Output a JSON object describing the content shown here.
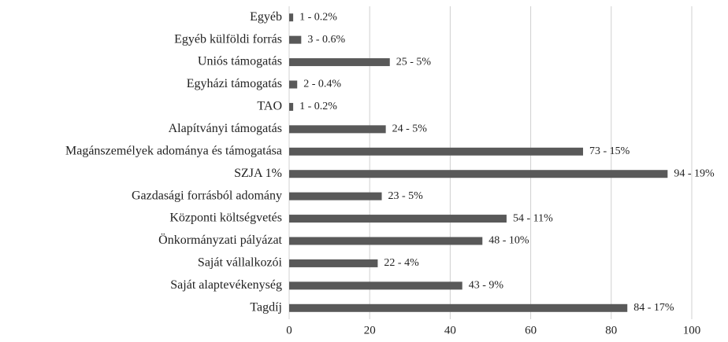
{
  "chart_data": {
    "type": "bar",
    "orientation": "horizontal",
    "categories": [
      "Egyéb",
      "Egyéb külföldi forrás",
      "Uniós támogatás",
      "Egyházi támogatás",
      "TAO",
      "Alapítványi támogatás",
      "Magánszemélyek adománya és támogatása",
      "SZJA 1%",
      "Gazdasági forrásból adomány",
      "Központi költségvetés",
      "Önkormányzati pályázat",
      "Saját vállalkozói",
      "Saját alaptevékenység",
      "Tagdíj"
    ],
    "values": [
      1,
      3,
      25,
      2,
      1,
      24,
      73,
      94,
      23,
      54,
      48,
      22,
      43,
      84
    ],
    "value_labels": [
      "1 - 0.2%",
      "3 - 0.6%",
      "25 - 5%",
      "2 - 0.4%",
      "1 - 0.2%",
      "24 - 5%",
      "73 - 15%",
      "94 - 19%",
      "23 - 5%",
      "54 - 11%",
      "48 - 10%",
      "22 - 4%",
      "43 - 9%",
      "84 - 17%"
    ],
    "color": "#595959",
    "xlim": [
      0,
      100
    ],
    "xticks": [
      0,
      20,
      40,
      60,
      80,
      100
    ],
    "grid": true
  }
}
